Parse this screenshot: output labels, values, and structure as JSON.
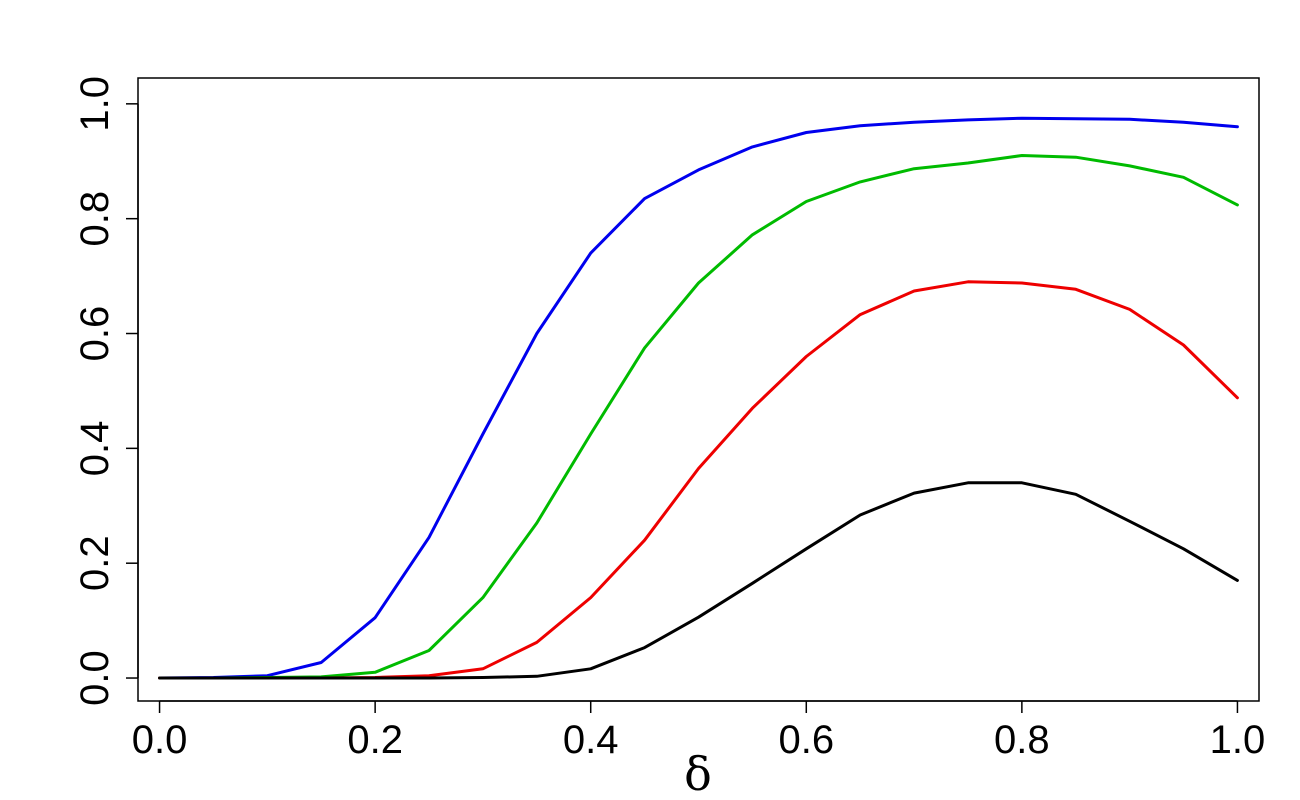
{
  "chart_data": {
    "type": "line",
    "title": "",
    "xlabel": "δ",
    "ylabel": "",
    "xlim": [
      -0.02,
      1.02
    ],
    "ylim": [
      -0.04,
      1.045
    ],
    "x_ticks": [
      0.0,
      0.2,
      0.4,
      0.6,
      0.8,
      1.0
    ],
    "x_tick_labels": [
      "0.0",
      "0.2",
      "0.4",
      "0.6",
      "0.8",
      "1.0"
    ],
    "y_ticks": [
      0.0,
      0.2,
      0.4,
      0.6,
      0.8,
      1.0
    ],
    "y_tick_labels": [
      "0.0",
      "0.2",
      "0.4",
      "0.6",
      "0.8",
      "1.0"
    ],
    "grid": false,
    "legend": "none",
    "x": [
      0.0,
      0.05,
      0.1,
      0.15,
      0.2,
      0.25,
      0.3,
      0.35,
      0.4,
      0.45,
      0.5,
      0.55,
      0.6,
      0.65,
      0.7,
      0.75,
      0.8,
      0.85,
      0.9,
      0.95,
      1.0
    ],
    "series": [
      {
        "color": "#0000ee",
        "values": [
          0.0,
          0.001,
          0.004,
          0.027,
          0.105,
          0.245,
          0.425,
          0.6,
          0.74,
          0.835,
          0.885,
          0.925,
          0.95,
          0.962,
          0.968,
          0.972,
          0.975,
          0.974,
          0.973,
          0.968,
          0.96
        ]
      },
      {
        "color": "#00bb00",
        "values": [
          0.0,
          0.0,
          0.001,
          0.002,
          0.01,
          0.048,
          0.14,
          0.27,
          0.425,
          0.575,
          0.688,
          0.772,
          0.83,
          0.864,
          0.887,
          0.897,
          0.91,
          0.907,
          0.892,
          0.872,
          0.824
        ]
      },
      {
        "color": "#ee0000",
        "values": [
          0.0,
          0.0,
          0.0,
          0.0,
          0.001,
          0.004,
          0.016,
          0.062,
          0.14,
          0.24,
          0.365,
          0.47,
          0.56,
          0.633,
          0.674,
          0.69,
          0.688,
          0.677,
          0.642,
          0.58,
          0.488
        ]
      },
      {
        "color": "#000000",
        "values": [
          0.0,
          0.0,
          0.0,
          0.0,
          0.0,
          0.0,
          0.001,
          0.003,
          0.016,
          0.053,
          0.106,
          0.165,
          0.225,
          0.284,
          0.322,
          0.34,
          0.34,
          0.32,
          0.273,
          0.225,
          0.17
        ]
      }
    ]
  }
}
